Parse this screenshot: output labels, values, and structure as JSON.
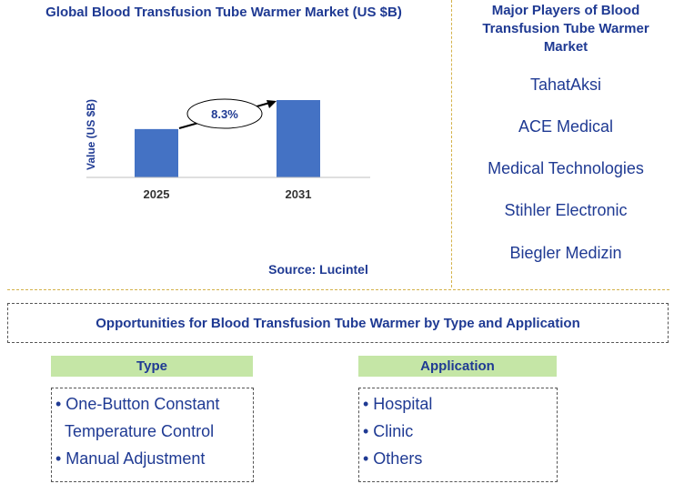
{
  "chart_data": {
    "type": "bar",
    "title": "Global Blood Transfusion Tube Warmer Market (US $B)",
    "ylabel": "Value (US $B)",
    "xlabel": "",
    "categories": [
      "2025",
      "2031"
    ],
    "values": [
      1.0,
      1.6
    ],
    "ylim": [
      0,
      1.6
    ],
    "annotation": "8.3%",
    "colors": {
      "bar": "#4472c4",
      "axis": "#bfbfbf",
      "text": "#1f3a93"
    }
  },
  "source": "Source: Lucintel",
  "players": {
    "title": "Major Players of Blood Transfusion Tube Warmer Market",
    "items": [
      "TahatAksi",
      "ACE Medical",
      "Medical Technologies",
      "Stihler Electronic",
      "Biegler Medizin"
    ]
  },
  "opportunities": {
    "title": "Opportunities for Blood Transfusion Tube Warmer by Type and Application",
    "type": {
      "header": "Type",
      "items": [
        "• One-Button Constant",
        "Temperature Control",
        "• Manual Adjustment"
      ]
    },
    "application": {
      "header": "Application",
      "items": [
        "• Hospital",
        "• Clinic",
        "• Others"
      ]
    }
  }
}
